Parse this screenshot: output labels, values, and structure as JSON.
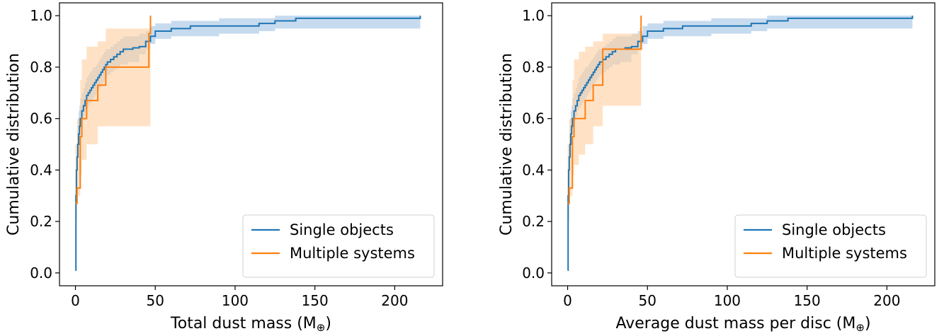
{
  "colors": {
    "single": "#1f77b4",
    "multiple": "#ff7f0e",
    "single_band": "#a9c8e6",
    "multiple_band": "#ffcfa0"
  },
  "chart_data": [
    {
      "type": "line",
      "xlabel": "Total dust mass (M",
      "xlabel_suffix": ")",
      "xlabel_symbol": "⊕",
      "ylabel": "Cumulative distribution",
      "xlim": [
        -10,
        230
      ],
      "ylim": [
        -0.05,
        1.05
      ],
      "xticks": [
        0,
        50,
        100,
        150,
        200
      ],
      "yticks": [
        0.0,
        0.2,
        0.4,
        0.6,
        0.8,
        1.0
      ],
      "xtick_labels": [
        "0",
        "50",
        "100",
        "150",
        "200"
      ],
      "ytick_labels": [
        "0.0",
        "0.2",
        "0.4",
        "0.6",
        "0.8",
        "1.0"
      ],
      "grid": false,
      "legend": {
        "position": "bottom-right",
        "entries": [
          "Single objects",
          "Multiple systems"
        ]
      },
      "series": [
        {
          "name": "Single objects",
          "style": "step",
          "x": [
            0,
            0.3,
            0.6,
            1,
            1.5,
            2,
            2.5,
            3,
            4,
            5,
            6,
            7,
            8,
            9,
            10,
            11,
            12,
            13,
            14,
            15,
            16,
            17,
            18,
            19,
            20,
            22,
            24,
            26,
            28,
            30,
            33,
            36,
            40,
            44,
            47,
            50,
            60,
            72,
            90,
            115,
            125,
            138,
            160,
            216
          ],
          "y": [
            0.01,
            0.3,
            0.4,
            0.45,
            0.5,
            0.54,
            0.57,
            0.6,
            0.63,
            0.65,
            0.67,
            0.69,
            0.7,
            0.71,
            0.72,
            0.73,
            0.74,
            0.75,
            0.76,
            0.77,
            0.78,
            0.79,
            0.8,
            0.81,
            0.82,
            0.83,
            0.84,
            0.85,
            0.86,
            0.87,
            0.87,
            0.875,
            0.88,
            0.9,
            0.92,
            0.94,
            0.95,
            0.96,
            0.96,
            0.97,
            0.98,
            0.99,
            0.99,
            1.0
          ],
          "band_lower": [
            0.0,
            0.15,
            0.3,
            0.35,
            0.4,
            0.45,
            0.5,
            0.54,
            0.56,
            0.59,
            0.61,
            0.63,
            0.64,
            0.65,
            0.66,
            0.67,
            0.68,
            0.69,
            0.7,
            0.71,
            0.72,
            0.73,
            0.74,
            0.75,
            0.76,
            0.77,
            0.78,
            0.79,
            0.8,
            0.81,
            0.81,
            0.82,
            0.82,
            0.85,
            0.87,
            0.89,
            0.91,
            0.92,
            0.92,
            0.93,
            0.94,
            0.95,
            0.95,
            0.95
          ],
          "band_upper": [
            0.05,
            0.4,
            0.5,
            0.55,
            0.6,
            0.63,
            0.65,
            0.68,
            0.7,
            0.72,
            0.74,
            0.76,
            0.77,
            0.78,
            0.79,
            0.8,
            0.8,
            0.81,
            0.82,
            0.83,
            0.84,
            0.85,
            0.86,
            0.87,
            0.87,
            0.88,
            0.89,
            0.9,
            0.91,
            0.92,
            0.92,
            0.92,
            0.93,
            0.94,
            0.96,
            0.97,
            0.98,
            0.98,
            0.99,
            0.99,
            1.0,
            1.0,
            1.0,
            1.0
          ]
        },
        {
          "name": "Multiple systems",
          "style": "step",
          "x": [
            0,
            1,
            3,
            4,
            7,
            14,
            19,
            46,
            47
          ],
          "y": [
            0.27,
            0.33,
            0.53,
            0.6,
            0.67,
            0.73,
            0.8,
            0.93,
            1.0
          ],
          "band_lower": [
            0.15,
            0.2,
            0.3,
            0.38,
            0.44,
            0.5,
            0.57,
            0.57,
            0.57
          ],
          "band_upper": [
            0.5,
            0.6,
            0.75,
            0.83,
            0.88,
            0.9,
            0.95,
            0.95,
            1.0
          ]
        }
      ]
    },
    {
      "type": "line",
      "xlabel": "Average dust mass per disc (M",
      "xlabel_suffix": ")",
      "xlabel_symbol": "⊕",
      "ylabel": "Cumulative distribution",
      "xlim": [
        -10,
        230
      ],
      "ylim": [
        -0.05,
        1.05
      ],
      "xticks": [
        0,
        50,
        100,
        150,
        200
      ],
      "yticks": [
        0.0,
        0.2,
        0.4,
        0.6,
        0.8,
        1.0
      ],
      "xtick_labels": [
        "0",
        "50",
        "100",
        "150",
        "200"
      ],
      "ytick_labels": [
        "0.0",
        "0.2",
        "0.4",
        "0.6",
        "0.8",
        "1.0"
      ],
      "grid": false,
      "legend": {
        "position": "bottom-right",
        "entries": [
          "Single objects",
          "Multiple systems"
        ]
      },
      "series": [
        {
          "name": "Single objects",
          "style": "step",
          "x": [
            0,
            0.3,
            0.6,
            1,
            1.5,
            2,
            2.5,
            3,
            4,
            5,
            6,
            7,
            8,
            9,
            10,
            11,
            12,
            13,
            14,
            15,
            16,
            17,
            18,
            19,
            20,
            22,
            24,
            26,
            28,
            30,
            33,
            36,
            40,
            44,
            47,
            50,
            60,
            72,
            90,
            115,
            125,
            138,
            160,
            216
          ],
          "y": [
            0.01,
            0.3,
            0.4,
            0.45,
            0.5,
            0.54,
            0.57,
            0.6,
            0.63,
            0.65,
            0.67,
            0.69,
            0.7,
            0.71,
            0.72,
            0.73,
            0.74,
            0.75,
            0.76,
            0.77,
            0.78,
            0.79,
            0.8,
            0.81,
            0.82,
            0.83,
            0.84,
            0.85,
            0.86,
            0.87,
            0.87,
            0.875,
            0.88,
            0.9,
            0.92,
            0.94,
            0.95,
            0.96,
            0.96,
            0.97,
            0.98,
            0.99,
            0.99,
            1.0
          ],
          "band_lower": [
            0.0,
            0.15,
            0.3,
            0.35,
            0.4,
            0.45,
            0.5,
            0.54,
            0.56,
            0.59,
            0.61,
            0.63,
            0.64,
            0.65,
            0.66,
            0.67,
            0.68,
            0.69,
            0.7,
            0.71,
            0.72,
            0.73,
            0.74,
            0.75,
            0.76,
            0.77,
            0.78,
            0.79,
            0.8,
            0.81,
            0.81,
            0.82,
            0.82,
            0.85,
            0.87,
            0.89,
            0.91,
            0.92,
            0.92,
            0.93,
            0.94,
            0.95,
            0.95,
            0.95
          ],
          "band_upper": [
            0.05,
            0.4,
            0.5,
            0.55,
            0.6,
            0.63,
            0.65,
            0.68,
            0.7,
            0.72,
            0.74,
            0.76,
            0.77,
            0.78,
            0.79,
            0.8,
            0.8,
            0.81,
            0.82,
            0.83,
            0.84,
            0.85,
            0.86,
            0.87,
            0.87,
            0.88,
            0.89,
            0.9,
            0.91,
            0.92,
            0.92,
            0.92,
            0.93,
            0.94,
            0.96,
            0.97,
            0.98,
            0.98,
            0.99,
            0.99,
            1.0,
            1.0,
            1.0,
            1.0
          ]
        },
        {
          "name": "Multiple systems",
          "style": "step",
          "x": [
            0,
            1,
            3,
            4,
            7,
            11,
            16,
            22,
            45,
            46
          ],
          "y": [
            0.27,
            0.33,
            0.53,
            0.6,
            0.6,
            0.67,
            0.73,
            0.87,
            0.87,
            1.0
          ],
          "band_lower": [
            0.15,
            0.2,
            0.3,
            0.38,
            0.42,
            0.46,
            0.5,
            0.57,
            0.65,
            0.65
          ],
          "band_upper": [
            0.5,
            0.6,
            0.75,
            0.83,
            0.86,
            0.88,
            0.9,
            0.93,
            0.95,
            1.0
          ]
        }
      ]
    }
  ]
}
